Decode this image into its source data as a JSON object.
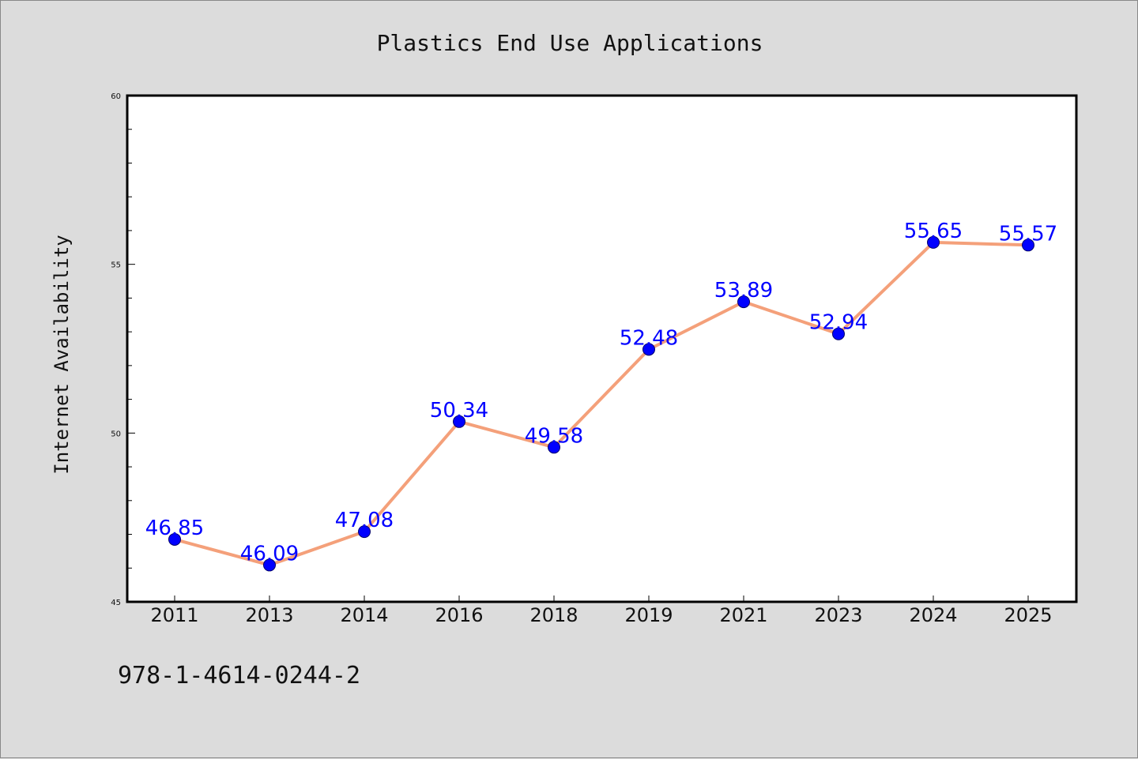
{
  "chart_data": {
    "type": "line",
    "title": "Plastics End Use Applications",
    "xlabel": "",
    "ylabel": "Internet Availability",
    "categories": [
      "2011",
      "2013",
      "2014",
      "2016",
      "2018",
      "2019",
      "2021",
      "2023",
      "2024",
      "2025"
    ],
    "series": [
      {
        "values": [
          46.85,
          46.09,
          47.08,
          50.34,
          49.58,
          52.48,
          53.89,
          52.94,
          55.65,
          55.57
        ],
        "data_labels": [
          "46.85",
          "46.09",
          "47.08",
          "50.34",
          "49.58",
          "52.48",
          "53.89",
          "52.94",
          "55.65",
          "55.57"
        ],
        "line_color": "#f4a07a",
        "marker_color": "#0000ff"
      }
    ],
    "ylim": [
      45,
      60
    ],
    "yticks": [
      "45",
      "50",
      "55",
      "60"
    ],
    "grid": false,
    "legend": "none"
  },
  "footer_text": "978-1-4614-0244-2",
  "colors": {
    "background": "#dcdcdc",
    "plot_background": "#ffffff",
    "line": "#f4a07a",
    "marker": "#0000ff",
    "data_label": "#0000ff"
  }
}
